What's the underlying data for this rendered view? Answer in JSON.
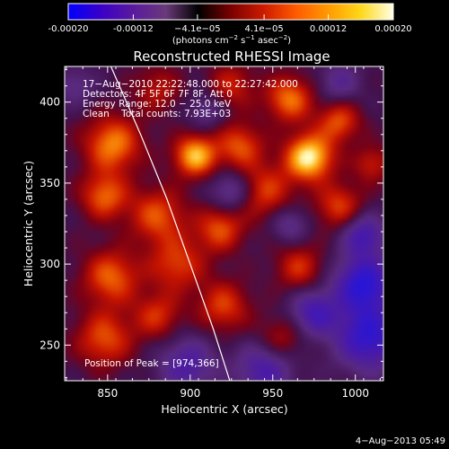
{
  "colorbar": {
    "ticks": [
      "-0.00020",
      "-0.00012",
      "−4.1e−05",
      "4.1e−05",
      "0.00012",
      "0.00020"
    ],
    "values": [
      -0.0002,
      -0.00012,
      -4.1e-05,
      4.1e-05,
      0.00012,
      0.0002
    ],
    "range": [
      -0.0002,
      0.0002
    ],
    "units_parts": [
      "(photons cm",
      "−2",
      " s",
      "−1",
      " asec",
      "−2",
      ")"
    ],
    "colors": [
      "#0000ff",
      "#3a00c8",
      "#5a1a9e",
      "#6a3a7a",
      "#000000",
      "#7a0000",
      "#cc1a00",
      "#ff5a00",
      "#ff9a00",
      "#ffd81a",
      "#ffffe6"
    ]
  },
  "chart_data": {
    "type": "heatmap",
    "title": "Reconstructed RHESSI Image",
    "xlabel": "Heliocentric X (arcsec)",
    "ylabel": "Heliocentric Y (arcsec)",
    "xlim": [
      824,
      1017
    ],
    "ylim": [
      228,
      422
    ],
    "x_ticks": [
      850,
      900,
      950,
      1000
    ],
    "y_ticks": [
      250,
      300,
      350,
      400
    ],
    "info": [
      "17−Aug−2010 22:22:48.000 to 22:27:42.000",
      "Detectors: 4F 5F 6F 7F 8F, Att 0",
      "Energy Range: 12.0 − 25.0 keV",
      "Clean    Total counts: 7.93E+03"
    ],
    "peak_label": "Position of Peak = [974,366]",
    "peak": [
      974,
      366
    ],
    "limb_points": [
      [
        852,
        422
      ],
      [
        870,
        380
      ],
      [
        886,
        340
      ],
      [
        900,
        300
      ],
      [
        914,
        260
      ],
      [
        924,
        228
      ]
    ],
    "sources": [
      {
        "x": 972,
        "y": 366,
        "v": 1.0,
        "s": 10
      },
      {
        "x": 903,
        "y": 367,
        "v": 0.85,
        "s": 9
      },
      {
        "x": 853,
        "y": 374,
        "v": 0.7,
        "s": 12
      },
      {
        "x": 848,
        "y": 342,
        "v": 0.6,
        "s": 10
      },
      {
        "x": 930,
        "y": 373,
        "v": 0.55,
        "s": 10
      },
      {
        "x": 960,
        "y": 402,
        "v": 0.65,
        "s": 10
      },
      {
        "x": 990,
        "y": 388,
        "v": 0.55,
        "s": 9
      },
      {
        "x": 945,
        "y": 345,
        "v": 0.5,
        "s": 12
      },
      {
        "x": 880,
        "y": 330,
        "v": 0.55,
        "s": 12
      },
      {
        "x": 918,
        "y": 322,
        "v": 0.55,
        "s": 10
      },
      {
        "x": 852,
        "y": 292,
        "v": 0.6,
        "s": 12
      },
      {
        "x": 892,
        "y": 300,
        "v": 0.5,
        "s": 12
      },
      {
        "x": 966,
        "y": 298,
        "v": 0.45,
        "s": 10
      },
      {
        "x": 990,
        "y": 336,
        "v": 0.5,
        "s": 10
      },
      {
        "x": 920,
        "y": 274,
        "v": 0.5,
        "s": 11
      },
      {
        "x": 848,
        "y": 254,
        "v": 0.55,
        "s": 12
      },
      {
        "x": 880,
        "y": 268,
        "v": 0.45,
        "s": 10
      },
      {
        "x": 955,
        "y": 254,
        "v": 0.35,
        "s": 10
      },
      {
        "x": 1010,
        "y": 362,
        "v": 0.4,
        "s": 8
      },
      {
        "x": 925,
        "y": 410,
        "v": 0.4,
        "s": 10
      },
      {
        "x": 880,
        "y": 408,
        "v": 0.35,
        "s": 10
      },
      {
        "x": 1005,
        "y": 288,
        "v": -0.85,
        "s": 12
      },
      {
        "x": 1008,
        "y": 255,
        "v": -0.8,
        "s": 14
      },
      {
        "x": 975,
        "y": 270,
        "v": -0.6,
        "s": 10
      },
      {
        "x": 945,
        "y": 235,
        "v": -0.55,
        "s": 12
      },
      {
        "x": 898,
        "y": 238,
        "v": -0.5,
        "s": 12
      },
      {
        "x": 1005,
        "y": 318,
        "v": -0.6,
        "s": 9
      },
      {
        "x": 925,
        "y": 345,
        "v": -0.45,
        "s": 9
      },
      {
        "x": 960,
        "y": 325,
        "v": -0.35,
        "s": 8
      },
      {
        "x": 990,
        "y": 412,
        "v": -0.35,
        "s": 9
      },
      {
        "x": 910,
        "y": 395,
        "v": -0.3,
        "s": 8
      },
      {
        "x": 830,
        "y": 410,
        "v": -0.3,
        "s": 8
      }
    ]
  },
  "footer": {
    "timestamp": "4−Aug−2013 05:49"
  }
}
